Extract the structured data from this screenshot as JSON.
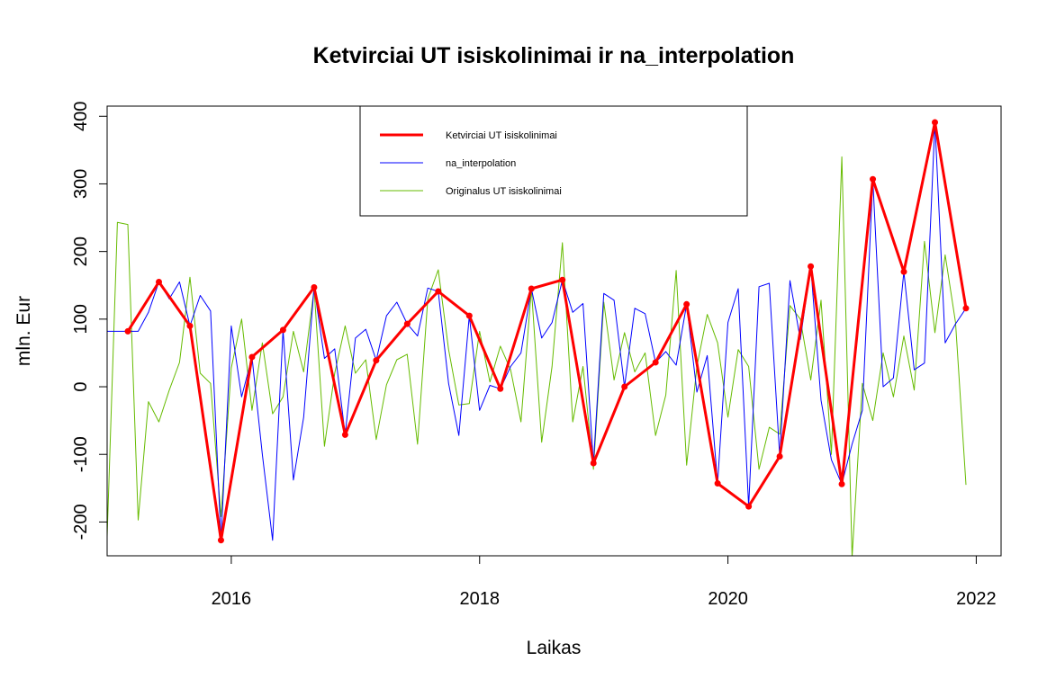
{
  "chart_data": {
    "type": "line",
    "title": "Ketvirciai UT isiskolinimai ir na_interpolation",
    "xlabel": "Laikas",
    "ylabel": "mln. Eur",
    "xlim": [
      2015.0,
      2022.2
    ],
    "ylim": [
      -250,
      415
    ],
    "x_ticks": [
      2016,
      2018,
      2020,
      2022
    ],
    "y_ticks": [
      -200,
      -100,
      0,
      100,
      200,
      300,
      400
    ],
    "grid": false,
    "legend_position": "top-center",
    "series": [
      {
        "name": "Ketvirciai UT isiskolinimai",
        "color": "#ff0000",
        "line_width": 3,
        "markers": true,
        "x": [
          2015.167,
          2015.417,
          2015.667,
          2015.917,
          2016.167,
          2016.417,
          2016.667,
          2016.917,
          2017.167,
          2017.417,
          2017.667,
          2017.917,
          2018.167,
          2018.417,
          2018.667,
          2018.917,
          2019.167,
          2019.417,
          2019.667,
          2019.917,
          2020.167,
          2020.417,
          2020.667,
          2020.917,
          2021.167,
          2021.417,
          2021.667,
          2021.917
        ],
        "y": [
          82,
          155,
          90,
          -227,
          44,
          84,
          147,
          -71,
          39,
          93,
          141,
          105,
          -3,
          145,
          158,
          -113,
          0,
          36,
          122,
          -143,
          -177,
          -103,
          178,
          -144,
          307,
          170,
          391,
          116
        ]
      },
      {
        "name": "na_interpolation",
        "color": "#0000ff",
        "line_width": 1,
        "x": [
          2015.0,
          2015.083,
          2015.167,
          2015.25,
          2015.333,
          2015.417,
          2015.5,
          2015.583,
          2015.667,
          2015.75,
          2015.833,
          2015.917,
          2016.0,
          2016.083,
          2016.167,
          2016.25,
          2016.333,
          2016.417,
          2016.5,
          2016.583,
          2016.667,
          2016.75,
          2016.833,
          2016.917,
          2017.0,
          2017.083,
          2017.167,
          2017.25,
          2017.333,
          2017.417,
          2017.5,
          2017.583,
          2017.667,
          2017.75,
          2017.833,
          2017.917,
          2018.0,
          2018.083,
          2018.167,
          2018.25,
          2018.333,
          2018.417,
          2018.5,
          2018.583,
          2018.667,
          2018.75,
          2018.833,
          2018.917,
          2019.0,
          2019.083,
          2019.167,
          2019.25,
          2019.333,
          2019.417,
          2019.5,
          2019.583,
          2019.667,
          2019.75,
          2019.833,
          2019.917,
          2020.0,
          2020.083,
          2020.167,
          2020.25,
          2020.333,
          2020.417,
          2020.5,
          2020.583,
          2020.667,
          2020.75,
          2020.833,
          2020.917,
          2021.0,
          2021.083,
          2021.167,
          2021.25,
          2021.333,
          2021.417,
          2021.5,
          2021.583,
          2021.667,
          2021.75,
          2021.833,
          2021.917
        ],
        "y": [
          82,
          82,
          82,
          82,
          110,
          155,
          130,
          155,
          90,
          135,
          112,
          -227,
          90,
          -15,
          44,
          -100,
          -227,
          84,
          -138,
          -45,
          147,
          42,
          56,
          -71,
          72,
          85,
          39,
          105,
          125,
          93,
          75,
          146,
          141,
          5,
          -72,
          105,
          -35,
          2,
          -3,
          30,
          50,
          145,
          72,
          95,
          158,
          110,
          123,
          -113,
          138,
          128,
          0,
          116,
          108,
          36,
          52,
          32,
          122,
          -8,
          46,
          -143,
          95,
          145,
          -177,
          148,
          153,
          -103,
          157,
          70,
          178,
          -20,
          -108,
          -144,
          -85,
          -35,
          307,
          0,
          13,
          170,
          25,
          35,
          391,
          65,
          93,
          116
        ]
      },
      {
        "name": "Originalus UT isiskolinimai",
        "color": "#66bb00",
        "line_width": 1,
        "x": [
          2015.0,
          2015.083,
          2015.167,
          2015.25,
          2015.333,
          2015.417,
          2015.5,
          2015.583,
          2015.667,
          2015.75,
          2015.833,
          2015.917,
          2016.0,
          2016.083,
          2016.167,
          2016.25,
          2016.333,
          2016.417,
          2016.5,
          2016.583,
          2016.667,
          2016.75,
          2016.833,
          2016.917,
          2017.0,
          2017.083,
          2017.167,
          2017.25,
          2017.333,
          2017.417,
          2017.5,
          2017.583,
          2017.667,
          2017.75,
          2017.833,
          2017.917,
          2018.0,
          2018.083,
          2018.167,
          2018.25,
          2018.333,
          2018.417,
          2018.5,
          2018.583,
          2018.667,
          2018.75,
          2018.833,
          2018.917,
          2019.0,
          2019.083,
          2019.167,
          2019.25,
          2019.333,
          2019.417,
          2019.5,
          2019.583,
          2019.667,
          2019.75,
          2019.833,
          2019.917,
          2020.0,
          2020.083,
          2020.167,
          2020.25,
          2020.333,
          2020.417,
          2020.5,
          2020.583,
          2020.667,
          2020.75,
          2020.833,
          2020.917,
          2021.0,
          2021.083,
          2021.167,
          2021.25,
          2021.333,
          2021.417,
          2021.5,
          2021.583,
          2021.667,
          2021.75,
          2021.833,
          2021.917
        ],
        "y": [
          -222,
          243,
          240,
          -197,
          -22,
          -52,
          -5,
          36,
          162,
          20,
          5,
          -192,
          28,
          100,
          -35,
          65,
          -40,
          -15,
          82,
          22,
          145,
          -88,
          20,
          90,
          20,
          40,
          -78,
          3,
          40,
          48,
          -85,
          130,
          173,
          55,
          -27,
          -25,
          82,
          7,
          60,
          25,
          -52,
          145,
          -82,
          30,
          213,
          -52,
          30,
          -122,
          125,
          10,
          80,
          22,
          50,
          -72,
          -12,
          172,
          -116,
          30,
          107,
          65,
          -45,
          55,
          30,
          -122,
          -60,
          -70,
          120,
          100,
          10,
          128,
          -100,
          340,
          -252,
          5,
          -50,
          50,
          -15,
          75,
          -5,
          215,
          80,
          195,
          95,
          -145
        ]
      }
    ]
  }
}
